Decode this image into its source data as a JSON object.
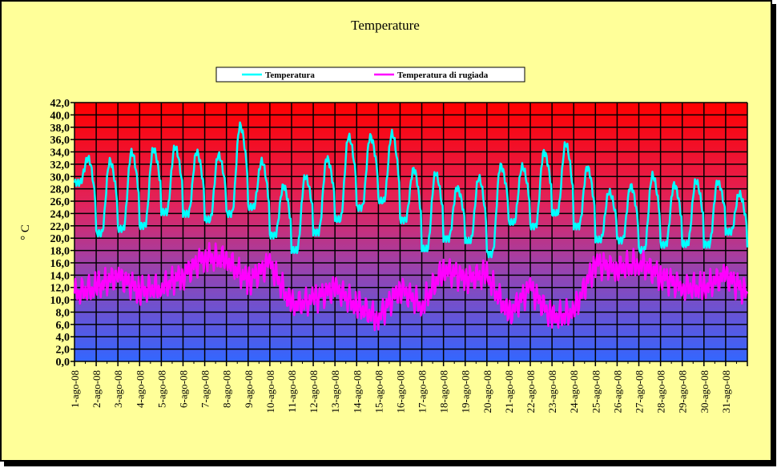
{
  "chart_data": {
    "type": "line",
    "title": "Temperature",
    "xlabel": "",
    "ylabel": "° C",
    "ylim": [
      0,
      42
    ],
    "ytick_step": 2,
    "yticks": [
      "0,0",
      "2,0",
      "4,0",
      "6,0",
      "8,0",
      "10,0",
      "12,0",
      "14,0",
      "16,0",
      "18,0",
      "20,0",
      "22,0",
      "24,0",
      "26,0",
      "28,0",
      "30,0",
      "32,0",
      "34,0",
      "36,0",
      "38,0",
      "40,0",
      "42,0"
    ],
    "categories": [
      "1-ago-08",
      "2-ago-08",
      "3-ago-08",
      "4-ago-08",
      "5-ago-08",
      "6-ago-08",
      "7-ago-08",
      "8-ago-08",
      "9-ago-08",
      "10-ago-08",
      "11-ago-08",
      "12-ago-08",
      "13-ago-08",
      "14-ago-08",
      "15-ago-08",
      "16-ago-08",
      "17-ago-08",
      "18-ago-08",
      "19-ago-08",
      "20-ago-08",
      "21-ago-08",
      "22-ago-08",
      "23-ago-08",
      "24-ago-08",
      "25-ago-08",
      "26-ago-08",
      "27-ago-08",
      "28-ago-08",
      "29-ago-08",
      "30-ago-08",
      "31-ago-08"
    ],
    "grid": true,
    "legend_position": "top-center",
    "series": [
      {
        "name": "Temperatura",
        "color": "#00ffff",
        "daily_max": [
          33,
          32.5,
          34,
          34.5,
          34.8,
          34,
          33.5,
          38.3,
          32.5,
          28.5,
          30,
          33,
          36.5,
          36.5,
          37,
          31.2,
          30.5,
          28.2,
          29.8,
          31.8,
          31.6,
          34,
          35.3,
          31.5,
          27.5,
          28.5,
          30.2,
          28.7,
          29.3,
          29.2,
          27.2
        ],
        "daily_min": [
          29,
          20.8,
          21.5,
          22,
          24.2,
          24,
          23,
          24,
          25,
          20.5,
          18,
          21,
          23,
          25,
          26,
          23,
          18.2,
          20,
          19.5,
          17.5,
          22.5,
          22,
          24,
          22,
          19.7,
          19.7,
          18,
          19,
          19,
          19,
          21
        ],
        "final_value": 18.5
      },
      {
        "name": "Temperatura di rugiada",
        "color": "#ff00ff",
        "daily": [
          11,
          12,
          14,
          11.5,
          12,
          14,
          17,
          16.5,
          13,
          16,
          9,
          10,
          12,
          9,
          7,
          12,
          9,
          15,
          13.5,
          14,
          7.5,
          12,
          7,
          8,
          16,
          15,
          16,
          14,
          12,
          12,
          14
        ],
        "final_value": 11
      }
    ]
  }
}
